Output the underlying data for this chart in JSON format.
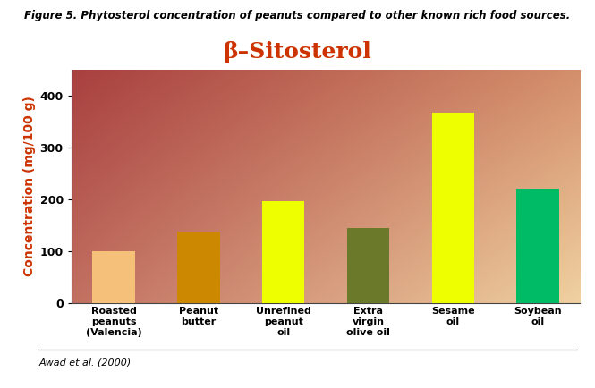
{
  "categories": [
    "Roasted\npeanuts\n(Valencia)",
    "Peanut\nbutter",
    "Unrefined\npeanut\noil",
    "Extra\nvirgin\nolive oil",
    "Sesame\noil",
    "Soybean\noil"
  ],
  "values": [
    99,
    137,
    197,
    144,
    368,
    220
  ],
  "bar_colors": [
    "#F5C07A",
    "#CC8800",
    "#EEFF00",
    "#6B7A2A",
    "#EEFF00",
    "#00BB66"
  ],
  "title": "β–Sitosterol",
  "title_color": "#CC3300",
  "ylabel": "Concentration (mg/100 g)",
  "ylabel_color": "#CC3300",
  "ylim": [
    0,
    450
  ],
  "yticks": [
    0,
    100,
    200,
    300,
    400
  ],
  "figure_title": "Figure 5. Phytosterol concentration of peanuts compared to other known rich food sources.",
  "caption": "Awad et al. (2000)",
  "bg_color_topleft": "#A84040",
  "bg_color_topright": "#D4906A",
  "bg_color_bottomleft": "#C07060",
  "bg_color_bottomright": "#F0D0A0",
  "tick_color": "#333333",
  "axis_label_fontsize": 10,
  "title_fontsize": 18,
  "figure_title_fontsize": 8.5,
  "caption_fontsize": 8,
  "bar_width": 0.5,
  "xticklabel_fontsize": 8,
  "yticklabel_fontsize": 9
}
